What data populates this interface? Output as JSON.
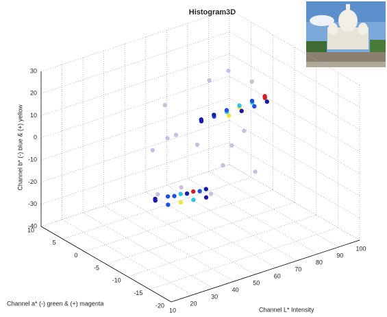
{
  "chart_data": {
    "type": "scatter3d",
    "title": "Histogram3D",
    "xlabel": "Channel L*  Intensity",
    "ylabel": "Channel a*  (-) green & (+) magenta",
    "zlabel": "Channel b*  (-) blue & (+) yellow",
    "xlim": [
      10,
      100
    ],
    "ylim": [
      -20,
      10
    ],
    "zlim": [
      -40,
      30
    ],
    "xticks": [
      10,
      20,
      30,
      40,
      50,
      60,
      70,
      80,
      90,
      100
    ],
    "yticks": [
      -20,
      -15,
      -10,
      -5,
      0,
      5,
      10
    ],
    "zticks": [
      -40,
      -30,
      -20,
      -10,
      0,
      10,
      20,
      30
    ],
    "grid": true,
    "x": [
      70,
      74,
      78,
      82,
      86,
      90,
      72,
      76,
      80,
      84,
      88,
      92,
      79,
      83,
      87,
      91,
      50,
      54,
      58,
      62,
      66,
      52,
      56,
      60,
      64,
      48,
      55,
      59,
      63,
      60,
      70,
      80,
      50,
      65,
      75,
      85,
      55,
      90,
      45,
      68,
      72,
      62,
      78,
      58
    ],
    "y": [
      2,
      1,
      0,
      -1,
      -2,
      -3,
      3,
      2,
      1,
      0,
      -1,
      -2,
      0,
      -1,
      -2,
      -3,
      3,
      2,
      1,
      0,
      -1,
      1,
      0,
      -1,
      -2,
      2,
      1,
      0,
      -1,
      5,
      -5,
      5,
      -3,
      8,
      -8,
      3,
      6,
      0,
      0,
      2,
      -2,
      4,
      -4,
      -6
    ],
    "z": [
      -2,
      0,
      2,
      4,
      6,
      8,
      -3,
      -1,
      1,
      3,
      5,
      7,
      0,
      2,
      4,
      6,
      -32,
      -31,
      -30,
      -29,
      -28,
      -33,
      -32,
      -31,
      -30,
      -31,
      -30,
      -29,
      -28,
      -10,
      -5,
      10,
      -20,
      0,
      -15,
      15,
      -15,
      12,
      -25,
      -12,
      -18,
      -8,
      -2,
      -22
    ],
    "point_colors": [
      "#1a1aa8",
      "#2050e0",
      "#30c0e0",
      "#f0e040",
      "#30c0e0",
      "#d02020",
      "#1a1aa8",
      "#1a1aa8",
      "#2050e0",
      "#30c0e0",
      "#2050e0",
      "#d02020",
      "#f0e040",
      "#1a1aa8",
      "#2050e0",
      "#1a1aa8",
      "#1a1aa8",
      "#2050e0",
      "#30c0e0",
      "#d02020",
      "#1a1aa8",
      "#2050e0",
      "#f0e040",
      "#30c0e0",
      "#1a1aa8",
      "#1a1aa8",
      "#2050e0",
      "#1a1aa8",
      "#2050e0",
      "#c8c0e0",
      "#c8c0e0",
      "#c8c0e0",
      "#c8c0e0",
      "#c8c0e0",
      "#c8c0e0",
      "#c8c0e0",
      "#c8c0e0",
      "#c8c0e0",
      "#c8c0e0",
      "#c8c0e0",
      "#c8c0e0",
      "#c8c0e0",
      "#c8c0e0",
      "#c8c0e0"
    ]
  }
}
